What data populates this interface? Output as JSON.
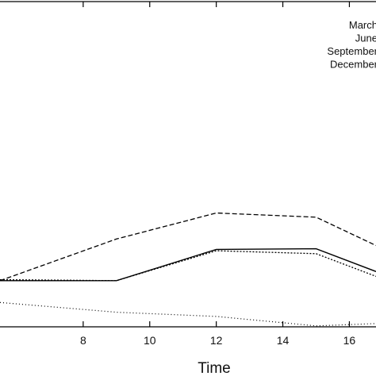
{
  "chart_data": {
    "type": "line",
    "title": "",
    "xlabel": "Time",
    "ylabel": "",
    "xlim": [
      5.5,
      16.8
    ],
    "ylim": [
      0,
      1
    ],
    "grid": false,
    "legend_position": "top-right",
    "x_ticks": [
      "8",
      "10",
      "12",
      "14",
      "16"
    ],
    "x_tick_values": [
      8,
      10,
      12,
      14,
      16
    ],
    "series": [
      {
        "name": "March",
        "style": "solid",
        "x": [
          5.5,
          9,
          12,
          15,
          16.8
        ],
        "y": [
          0.142,
          0.142,
          0.238,
          0.24,
          0.17
        ]
      },
      {
        "name": "June",
        "style": "dashed",
        "x": [
          5.5,
          9,
          12,
          15,
          16.8
        ],
        "y": [
          0.142,
          0.27,
          0.35,
          0.337,
          0.25
        ]
      },
      {
        "name": "September",
        "style": "densely-dotted",
        "x": [
          5.5,
          9,
          12,
          15,
          16.8
        ],
        "y": [
          0.145,
          0.142,
          0.234,
          0.225,
          0.155
        ]
      },
      {
        "name": "December",
        "style": "dotted",
        "x": [
          5.5,
          9,
          12,
          15,
          16.8
        ],
        "y": [
          0.075,
          0.045,
          0.032,
          0.003,
          0.01
        ]
      }
    ]
  }
}
